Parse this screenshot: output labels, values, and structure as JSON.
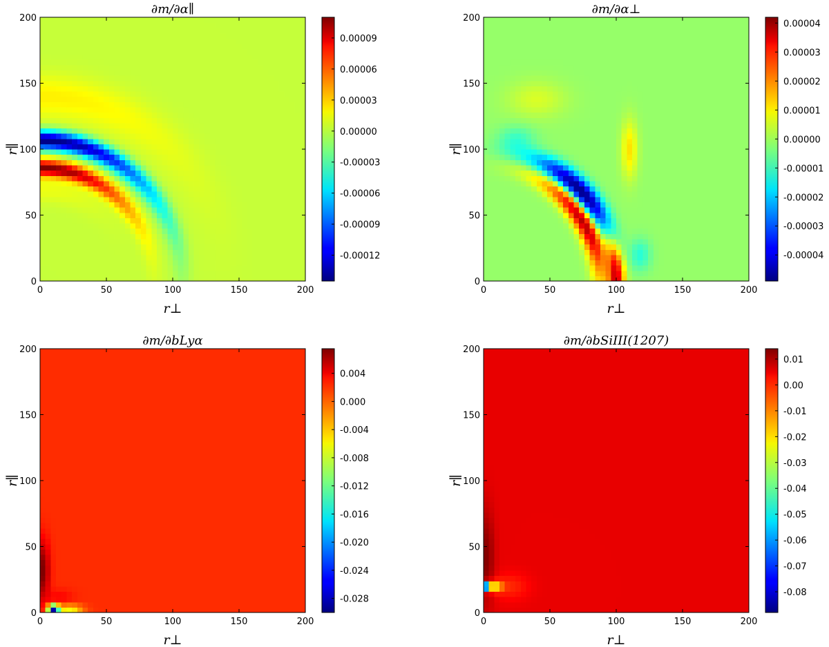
{
  "chart_data": [
    {
      "type": "heatmap",
      "title": "∂m/∂α∥",
      "xlabel": "r⊥",
      "ylabel": "r∥",
      "xlim": [
        0,
        200
      ],
      "ylim": [
        0,
        200
      ],
      "xticks": [
        "0",
        "50",
        "100",
        "150",
        "200"
      ],
      "yticks": [
        "0",
        "50",
        "100",
        "150",
        "200"
      ],
      "colorbar": {
        "min": -0.000145,
        "max": 0.00011,
        "ticks": [
          {
            "value": -0.00012,
            "label": "-0.00012"
          },
          {
            "value": -9e-05,
            "label": "-0.00009"
          },
          {
            "value": -6e-05,
            "label": "-0.00006"
          },
          {
            "value": -3e-05,
            "label": "-0.00003"
          },
          {
            "value": 0.0,
            "label": "0.00000"
          },
          {
            "value": 3e-05,
            "label": "0.00003"
          },
          {
            "value": 6e-05,
            "label": "0.00006"
          },
          {
            "value": 9e-05,
            "label": "0.00009"
          }
        ]
      },
      "background_value": 0.0,
      "features": [
        {
          "kind": "ring",
          "r": 107,
          "width": 7,
          "amp": -0.000145,
          "ang_width": 0.95,
          "ang_center": 1.5708
        },
        {
          "kind": "ring",
          "r": 86,
          "width": 6,
          "amp": 0.00011,
          "ang_width": 0.85,
          "ang_center": 1.5708
        },
        {
          "kind": "ring",
          "r": 140,
          "width": 16,
          "amp": 1.8e-05,
          "ang_width": 0.9,
          "ang_center": 1.5708
        },
        {
          "kind": "ring",
          "r": 70,
          "width": 10,
          "amp": 1e-05,
          "ang_width": 0.7,
          "ang_center": 1.5708
        }
      ]
    },
    {
      "type": "heatmap",
      "title": "∂m/∂α⊥",
      "xlabel": "r⊥",
      "ylabel": "r∥",
      "xlim": [
        0,
        200
      ],
      "ylim": [
        0,
        200
      ],
      "xticks": [
        "0",
        "50",
        "100",
        "150",
        "200"
      ],
      "yticks": [
        "0",
        "50",
        "100",
        "150",
        "200"
      ],
      "colorbar": {
        "min": -4.9e-05,
        "max": 4.2e-05,
        "ticks": [
          {
            "value": -4e-05,
            "label": "-0.00004"
          },
          {
            "value": -3e-05,
            "label": "-0.00003"
          },
          {
            "value": -2e-05,
            "label": "-0.00002"
          },
          {
            "value": -1e-05,
            "label": "-0.00001"
          },
          {
            "value": 0.0,
            "label": "0.00000"
          },
          {
            "value": 1e-05,
            "label": "0.00001"
          },
          {
            "value": 2e-05,
            "label": "0.00002"
          },
          {
            "value": 3e-05,
            "label": "0.00003"
          },
          {
            "value": 4e-05,
            "label": "0.00004"
          }
        ]
      },
      "background_value": -1.5e-06,
      "features": [
        {
          "kind": "ring",
          "r": 100,
          "width": 8,
          "amp": -4.9e-05,
          "ang_width": 0.42,
          "ang_center": 0.75
        },
        {
          "kind": "ring",
          "r": 88,
          "width": 7,
          "amp": 4.2e-05,
          "ang_width": 0.5,
          "ang_center": 0.55
        },
        {
          "kind": "ring",
          "r": 100,
          "width": 6,
          "amp": 4e-05,
          "ang_width": 0.3,
          "ang_center": 0.05
        },
        {
          "kind": "blob",
          "x": 110,
          "y": 100,
          "sx": 6,
          "sy": 22,
          "amp": 1.2e-05
        },
        {
          "kind": "blob",
          "x": 118,
          "y": 20,
          "sx": 8,
          "sy": 12,
          "amp": -1e-05
        },
        {
          "kind": "blob",
          "x": 25,
          "y": 108,
          "sx": 14,
          "sy": 10,
          "amp": -8e-06
        },
        {
          "kind": "blob",
          "x": 40,
          "y": 138,
          "sx": 22,
          "sy": 14,
          "amp": 6e-06
        }
      ]
    },
    {
      "type": "heatmap",
      "title": "∂m/∂bLyα",
      "xlabel": "r⊥",
      "ylabel": "r∥",
      "xlim": [
        0,
        200
      ],
      "ylim": [
        0,
        200
      ],
      "xticks": [
        "0",
        "50",
        "100",
        "150",
        "200"
      ],
      "yticks": [
        "0",
        "50",
        "100",
        "150",
        "200"
      ],
      "colorbar": {
        "min": -0.03,
        "max": 0.0075,
        "ticks": [
          {
            "value": -0.028,
            "label": "-0.028"
          },
          {
            "value": -0.024,
            "label": "-0.024"
          },
          {
            "value": -0.02,
            "label": "-0.020"
          },
          {
            "value": -0.016,
            "label": "-0.016"
          },
          {
            "value": -0.012,
            "label": "-0.012"
          },
          {
            "value": -0.008,
            "label": "-0.008"
          },
          {
            "value": -0.004,
            "label": "-0.004"
          },
          {
            "value": 0.0,
            "label": "0.000"
          },
          {
            "value": 0.004,
            "label": "0.004"
          }
        ]
      },
      "background_value": 0.0012,
      "features": [
        {
          "kind": "blob",
          "x": 2,
          "y": 32,
          "sx": 5,
          "sy": 22,
          "amp": 0.0065
        },
        {
          "kind": "blob",
          "x": 15,
          "y": 12,
          "sx": 10,
          "sy": 6,
          "amp": 0.0015
        },
        {
          "kind": "blob",
          "x": 10,
          "y": 3,
          "sx": 4,
          "sy": 3,
          "amp": -0.031
        },
        {
          "kind": "blob",
          "x": 22,
          "y": 3,
          "sx": 10,
          "sy": 3,
          "amp": -0.009
        }
      ]
    },
    {
      "type": "heatmap",
      "title": "∂m/∂bSiIII(1207)",
      "xlabel": "r⊥",
      "ylabel": "r∥",
      "xlim": [
        0,
        200
      ],
      "ylim": [
        0,
        200
      ],
      "xticks": [
        "0",
        "50",
        "100",
        "150",
        "200"
      ],
      "yticks": [
        "0",
        "50",
        "100",
        "150",
        "200"
      ],
      "colorbar": {
        "min": -0.088,
        "max": 0.014,
        "ticks": [
          {
            "value": -0.08,
            "label": "-0.08"
          },
          {
            "value": -0.07,
            "label": "-0.07"
          },
          {
            "value": -0.06,
            "label": "-0.06"
          },
          {
            "value": -0.05,
            "label": "-0.05"
          },
          {
            "value": -0.04,
            "label": "-0.04"
          },
          {
            "value": -0.03,
            "label": "-0.03"
          },
          {
            "value": -0.02,
            "label": "-0.02"
          },
          {
            "value": -0.01,
            "label": "-0.01"
          },
          {
            "value": 0.0,
            "label": "0.00"
          },
          {
            "value": 0.01,
            "label": "0.01"
          }
        ]
      },
      "background_value": 0.0035,
      "features": [
        {
          "kind": "blob",
          "x": 2,
          "y": 42,
          "sx": 6,
          "sy": 35,
          "amp": 0.01
        },
        {
          "kind": "blob",
          "x": 2,
          "y": 20,
          "sx": 2.5,
          "sy": 3,
          "amp": -0.092
        },
        {
          "kind": "blob",
          "x": 8,
          "y": 20,
          "sx": 6,
          "sy": 4,
          "amp": -0.03
        },
        {
          "kind": "blob",
          "x": 20,
          "y": 20,
          "sx": 14,
          "sy": 10,
          "amp": -0.006
        }
      ]
    }
  ]
}
